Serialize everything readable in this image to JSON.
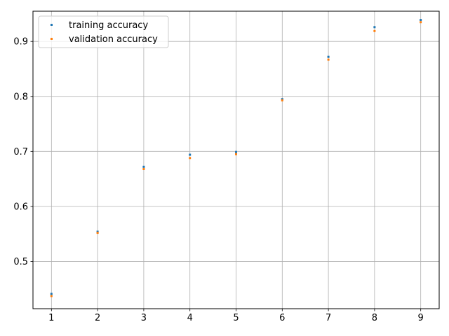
{
  "chart_data": {
    "type": "scatter",
    "title": "",
    "xlabel": "",
    "ylabel": "",
    "x": [
      1,
      2,
      3,
      4,
      5,
      6,
      7,
      8,
      9
    ],
    "xlim": [
      0.6,
      9.4
    ],
    "ylim": [
      0.414,
      0.955
    ],
    "xticks": [
      1,
      2,
      3,
      4,
      5,
      6,
      7,
      8,
      9
    ],
    "yticks": [
      0.5,
      0.6,
      0.7,
      0.8,
      0.9
    ],
    "grid": true,
    "legend_position": "top-left",
    "series": [
      {
        "name": "training accuracy",
        "color": "#1f77b4",
        "values": [
          0.441,
          0.554,
          0.672,
          0.694,
          0.699,
          0.795,
          0.872,
          0.926,
          0.939
        ]
      },
      {
        "name": "validation accuracy",
        "color": "#ff7f0e",
        "values": [
          0.437,
          0.552,
          0.668,
          0.688,
          0.695,
          0.793,
          0.867,
          0.919,
          0.935
        ]
      }
    ]
  }
}
